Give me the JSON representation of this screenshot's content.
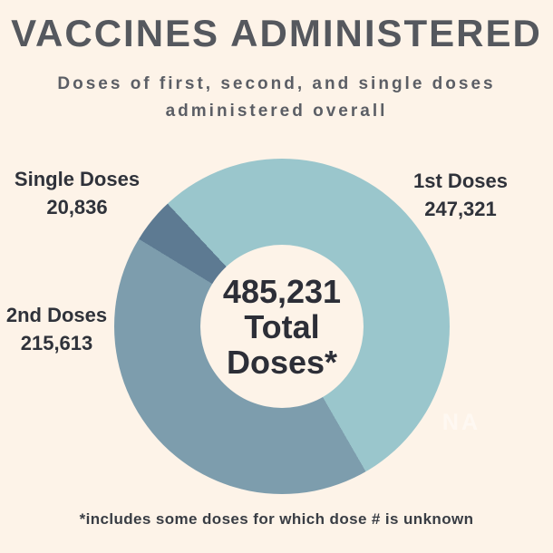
{
  "title": "VACCINES ADMINISTERED",
  "subtitle": {
    "line1": "Doses of first, second, and single doses",
    "line2": "administered overall"
  },
  "colors": {
    "background": "#fdf3e8",
    "title_text": "#55585e",
    "subtitle_text": "#5b5e65",
    "label_text": "#2f323a",
    "center_text": "#2c2e37",
    "footnote_text": "#393d44",
    "segment_1st": "#9ac6cc",
    "segment_2nd": "#7d9dad",
    "segment_single": "#5d7a92"
  },
  "chart_data": {
    "type": "pie",
    "subtype": "donut",
    "title": "Vaccines Administered",
    "total": 485231,
    "center_label": {
      "line1": "485,231",
      "line2": "Total",
      "line3": "Doses*"
    },
    "donut_hole_color": "#fdf3e8",
    "start_deg_from_top_clockwise": 317,
    "segments": [
      {
        "label": "1st Doses",
        "value": 247321,
        "value_text": "247,321",
        "color": "#9ac6cc",
        "sweep_deg": 193.0,
        "label_position": "upper-right"
      },
      {
        "label": "2nd Doses",
        "value": 215613,
        "value_text": "215,613",
        "color": "#7d9dad",
        "sweep_deg": 151.4,
        "label_position": "middle-left"
      },
      {
        "label": "Single Doses",
        "value": 20836,
        "value_text": "20,836",
        "color": "#5d7a92",
        "sweep_deg": 15.6,
        "label_position": "upper-left"
      }
    ],
    "legend": "none",
    "grid": false
  },
  "footnote": "*includes some doses for which dose # is unknown",
  "watermark": {
    "text": "NA"
  }
}
